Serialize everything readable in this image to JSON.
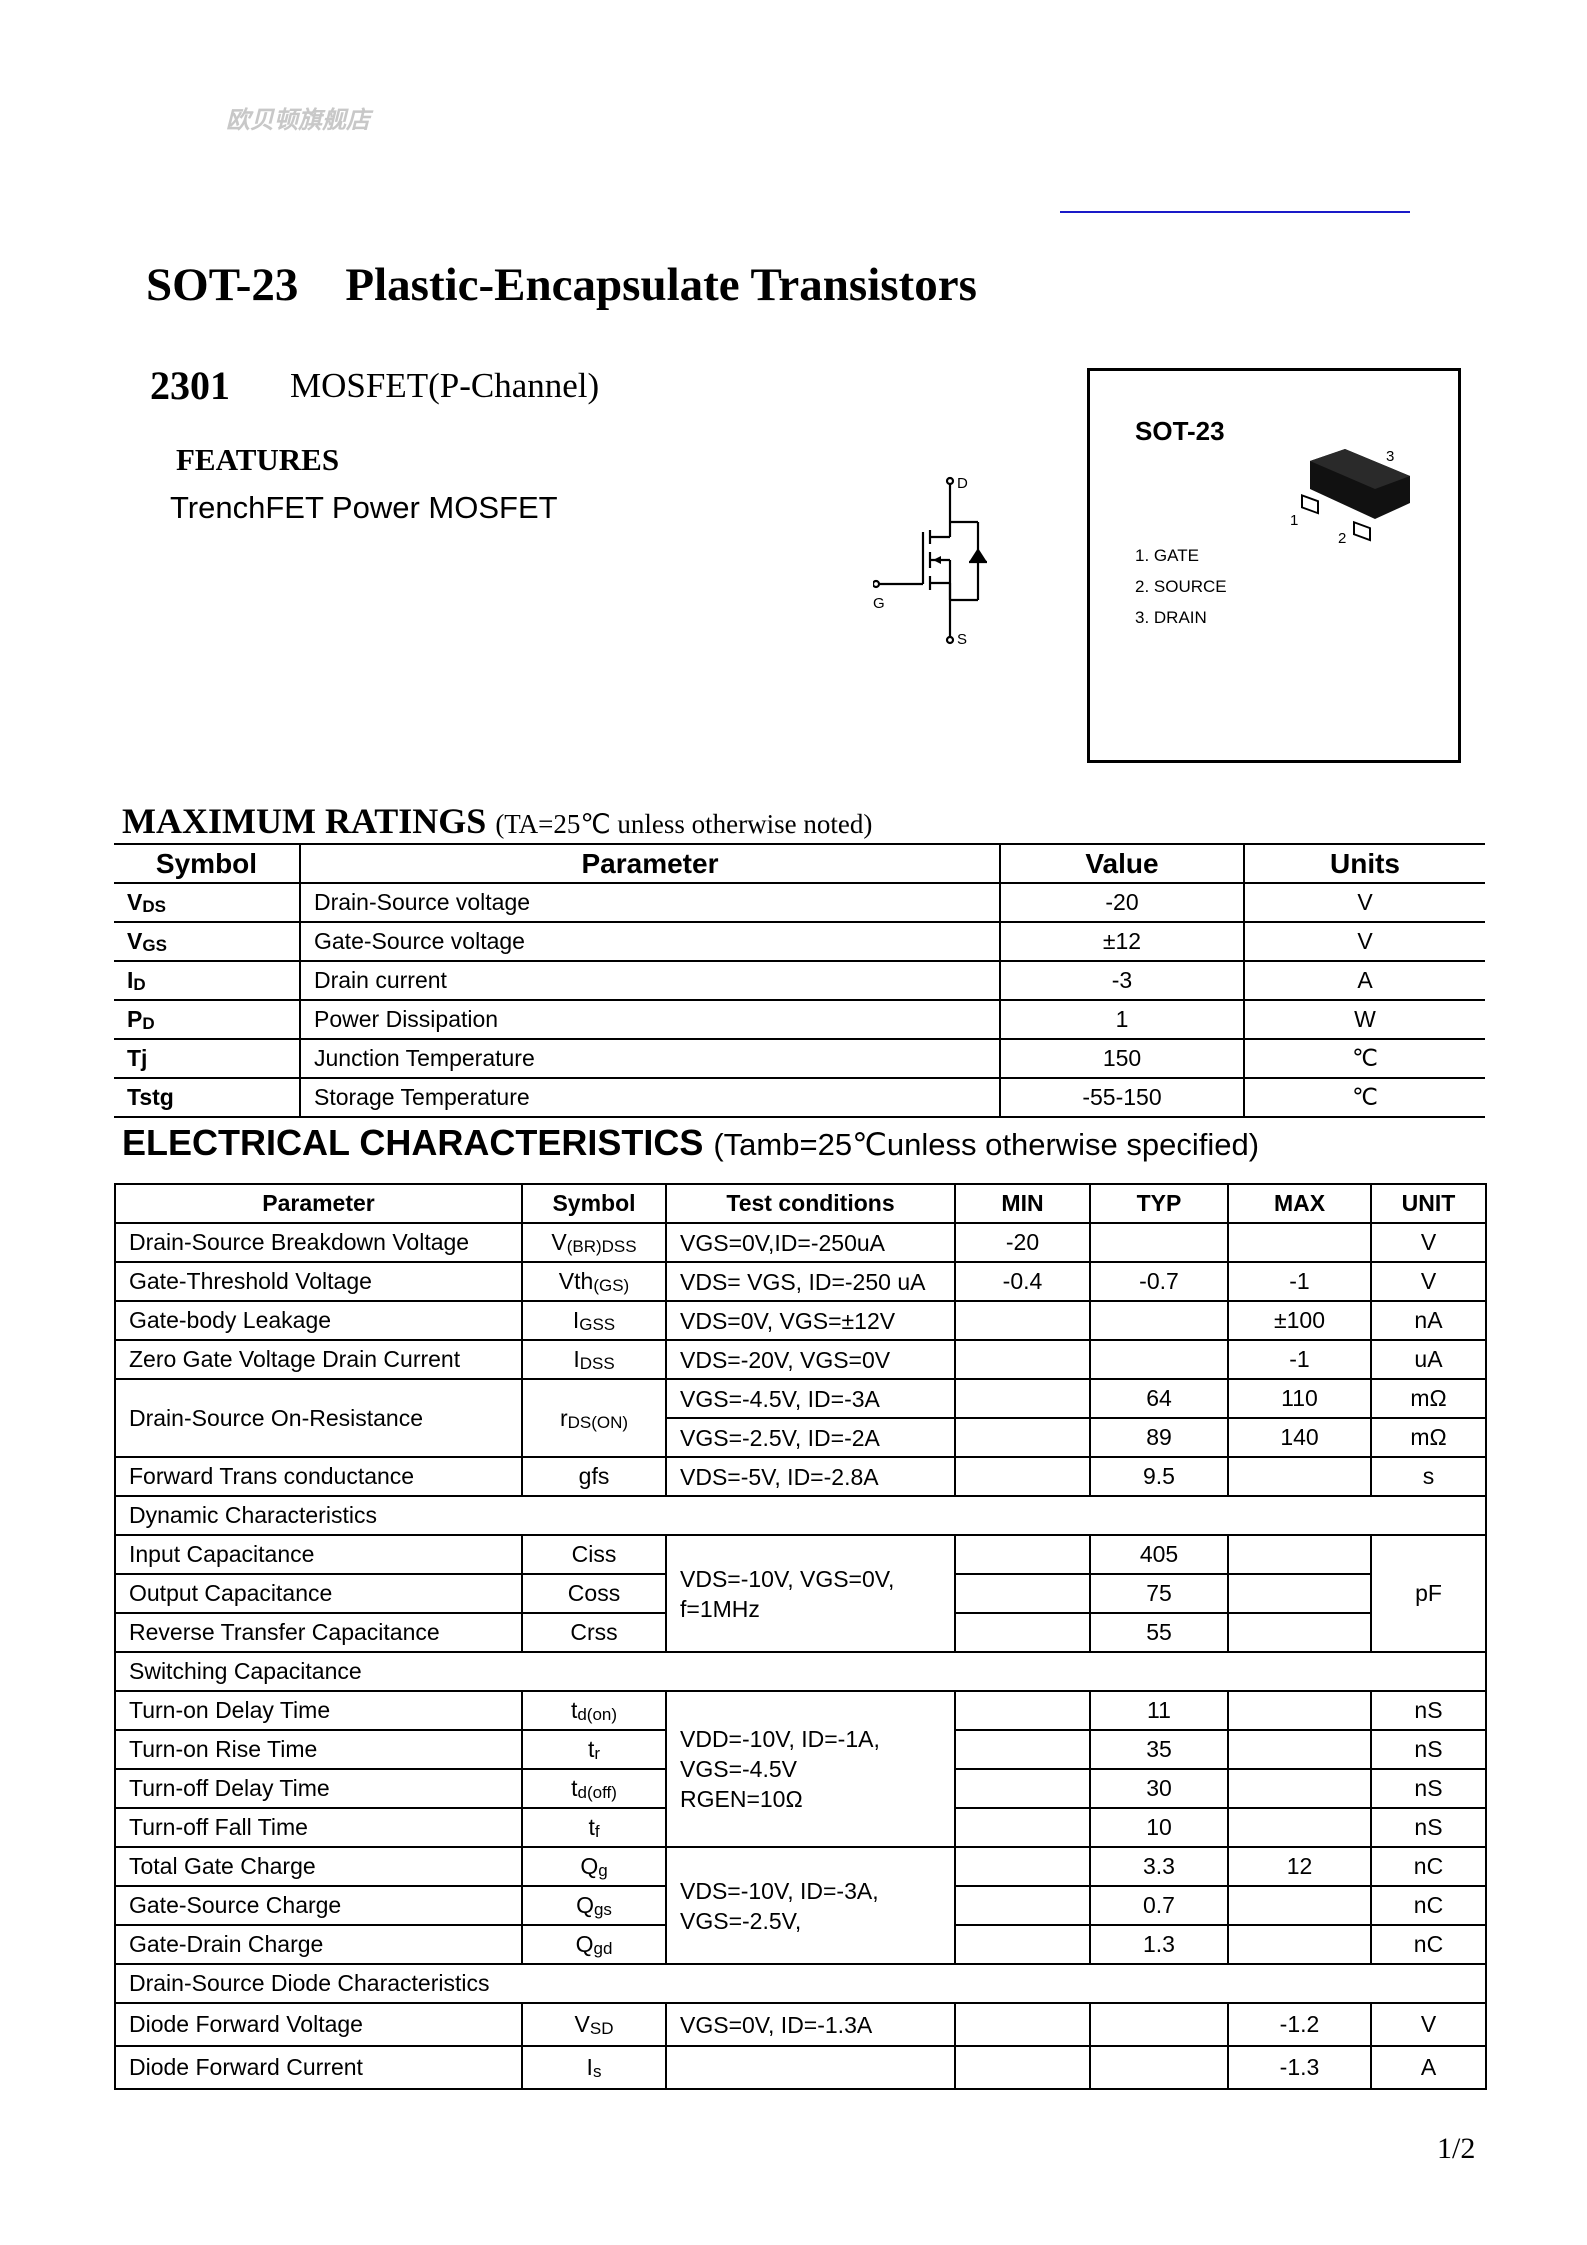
{
  "header": {
    "watermark": "欧贝顿旗舰店",
    "title": "SOT-23    Plastic-Encapsulate Transistors",
    "part_number": "2301",
    "part_type": "MOSFET(P-Channel)",
    "features_heading": "FEATURES",
    "features": [
      "TrenchFET Power MOSFET"
    ],
    "accent_line_color": "#1a1ac8"
  },
  "schematic": {
    "labels": {
      "drain": "D",
      "gate": "G",
      "source": "S"
    }
  },
  "package": {
    "name": "SOT-23",
    "pin_numbers": [
      "1",
      "2",
      "3"
    ],
    "pins": [
      "1. GATE",
      "2. SOURCE",
      "3. DRAIN"
    ]
  },
  "max_ratings": {
    "title": "MAXIMUM RATINGS",
    "note": "(TA=25℃ unless otherwise noted)",
    "columns": [
      "Symbol",
      "Parameter",
      "Value",
      "Units"
    ],
    "rows": [
      {
        "symbol": {
          "m": "V",
          "s": "DS"
        },
        "parameter": "Drain-Source voltage",
        "value": "-20",
        "units": "V"
      },
      {
        "symbol": {
          "m": "V",
          "s": "GS"
        },
        "parameter": "Gate-Source voltage",
        "value": "±12",
        "units": "V"
      },
      {
        "symbol": {
          "m": "I",
          "s": "D"
        },
        "parameter": "Drain current",
        "value": "-3",
        "units": "A"
      },
      {
        "symbol": {
          "m": "P",
          "s": "D"
        },
        "parameter": "Power Dissipation",
        "value": "1",
        "units": "W"
      },
      {
        "symbol": {
          "m": "Tj",
          "s": ""
        },
        "parameter": "Junction Temperature",
        "value": "150",
        "units": "℃"
      },
      {
        "symbol": {
          "m": "Tstg",
          "s": ""
        },
        "parameter": "Storage Temperature",
        "value": "-55-150",
        "units": "℃"
      }
    ]
  },
  "electrical": {
    "title": "ELECTRICAL CHARACTERISTICS",
    "note": "(Tamb=25℃unless otherwise specified)",
    "columns": [
      "Parameter",
      "Symbol",
      "Test conditions",
      "MIN",
      "TYP",
      "MAX",
      "UNIT"
    ],
    "rows": [
      {
        "parameter": "Drain-Source Breakdown Voltage",
        "symbol": {
          "m": "V",
          "s": "(BR)DSS"
        },
        "conditions": "VGS=0V,ID=-250uA",
        "min": "-20",
        "typ": "",
        "max": "",
        "unit": "V"
      },
      {
        "parameter": "Gate-Threshold Voltage",
        "symbol": {
          "m": "Vth",
          "s": "(GS)"
        },
        "conditions": "VDS= VGS, ID=-250 uA",
        "min": "-0.4",
        "typ": "-0.7",
        "max": "-1",
        "unit": "V"
      },
      {
        "parameter": "Gate-body Leakage",
        "symbol": {
          "m": "I",
          "s": "GSS"
        },
        "conditions": "VDS=0V, VGS=±12V",
        "min": "",
        "typ": "",
        "max": "±100",
        "unit": "nA"
      },
      {
        "parameter": "Zero Gate Voltage Drain Current",
        "symbol": {
          "m": "I",
          "s": "DSS"
        },
        "conditions": "VDS=-20V, VGS=0V",
        "min": "",
        "typ": "",
        "max": "-1",
        "unit": "uA"
      },
      {
        "parameter": "Drain-Source On-Resistance",
        "symbol": {
          "m": "r",
          "s": "DS(ON)"
        },
        "conditions": "VGS=-4.5V, ID=-3A",
        "min": "",
        "typ": "64",
        "max": "110",
        "unit": "mΩ"
      },
      {
        "conditions": "VGS=-2.5V, ID=-2A",
        "min": "",
        "typ": "89",
        "max": "140",
        "unit": "mΩ"
      },
      {
        "parameter": "Forward Trans conductance",
        "symbol": {
          "m": "gfs",
          "s": ""
        },
        "conditions": "VDS=-5V, ID=-2.8A",
        "min": "",
        "typ": "9.5",
        "max": "",
        "unit": "s"
      },
      {
        "section": "Dynamic Characteristics"
      },
      {
        "parameter": "Input Capacitance",
        "symbol": {
          "m": "Ciss",
          "s": ""
        },
        "conditions": "VDS=-10V, VGS=0V,\nf=1MHz",
        "min": "",
        "typ": "405",
        "max": "",
        "unit": "pF"
      },
      {
        "parameter": "Output Capacitance",
        "symbol": {
          "m": "Coss",
          "s": ""
        },
        "min": "",
        "typ": "75",
        "max": ""
      },
      {
        "parameter": "Reverse Transfer Capacitance",
        "symbol": {
          "m": "Crss",
          "s": ""
        },
        "min": "",
        "typ": "55",
        "max": ""
      },
      {
        "section": "Switching Capacitance"
      },
      {
        "parameter": "Turn-on Delay Time",
        "symbol": {
          "m": "t",
          "s": "d(on)"
        },
        "conditions": "VDD=-10V, ID=-1A,\nVGS=-4.5V\nRGEN=10Ω",
        "min": "",
        "typ": "11",
        "max": "",
        "unit": "nS"
      },
      {
        "parameter": "Turn-on Rise Time",
        "symbol": {
          "m": "t",
          "s": "r"
        },
        "min": "",
        "typ": "35",
        "max": "",
        "unit": "nS"
      },
      {
        "parameter": "Turn-off Delay Time",
        "symbol": {
          "m": "t",
          "s": "d(off)"
        },
        "min": "",
        "typ": "30",
        "max": "",
        "unit": "nS"
      },
      {
        "parameter": "Turn-off Fall Time",
        "symbol": {
          "m": "t",
          "s": "f"
        },
        "min": "",
        "typ": "10",
        "max": "",
        "unit": "nS"
      },
      {
        "parameter": "Total Gate Charge",
        "symbol": {
          "m": "Q",
          "s": "g"
        },
        "conditions": "VDS=-10V, ID=-3A,\nVGS=-2.5V,",
        "min": "",
        "typ": "3.3",
        "max": "12",
        "unit": "nC"
      },
      {
        "parameter": "Gate-Source Charge",
        "symbol": {
          "m": "Q",
          "s": "gs"
        },
        "min": "",
        "typ": "0.7",
        "max": "",
        "unit": "nC"
      },
      {
        "parameter": "Gate-Drain Charge",
        "symbol": {
          "m": "Q",
          "s": "gd"
        },
        "min": "",
        "typ": "1.3",
        "max": "",
        "unit": "nC"
      },
      {
        "section": "Drain-Source Diode Characteristics"
      },
      {
        "parameter": "Diode Forward Voltage",
        "symbol": {
          "m": "V",
          "s": "SD"
        },
        "conditions": "VGS=0V, ID=-1.3A",
        "min": "",
        "typ": "",
        "max": "-1.2",
        "unit": "V"
      },
      {
        "parameter": "Diode Forward Current",
        "symbol": {
          "m": "I",
          "s": "s"
        },
        "conditions": "",
        "min": "",
        "typ": "",
        "max": "-1.3",
        "unit": "A"
      }
    ]
  },
  "footer": {
    "page": "1/2"
  }
}
